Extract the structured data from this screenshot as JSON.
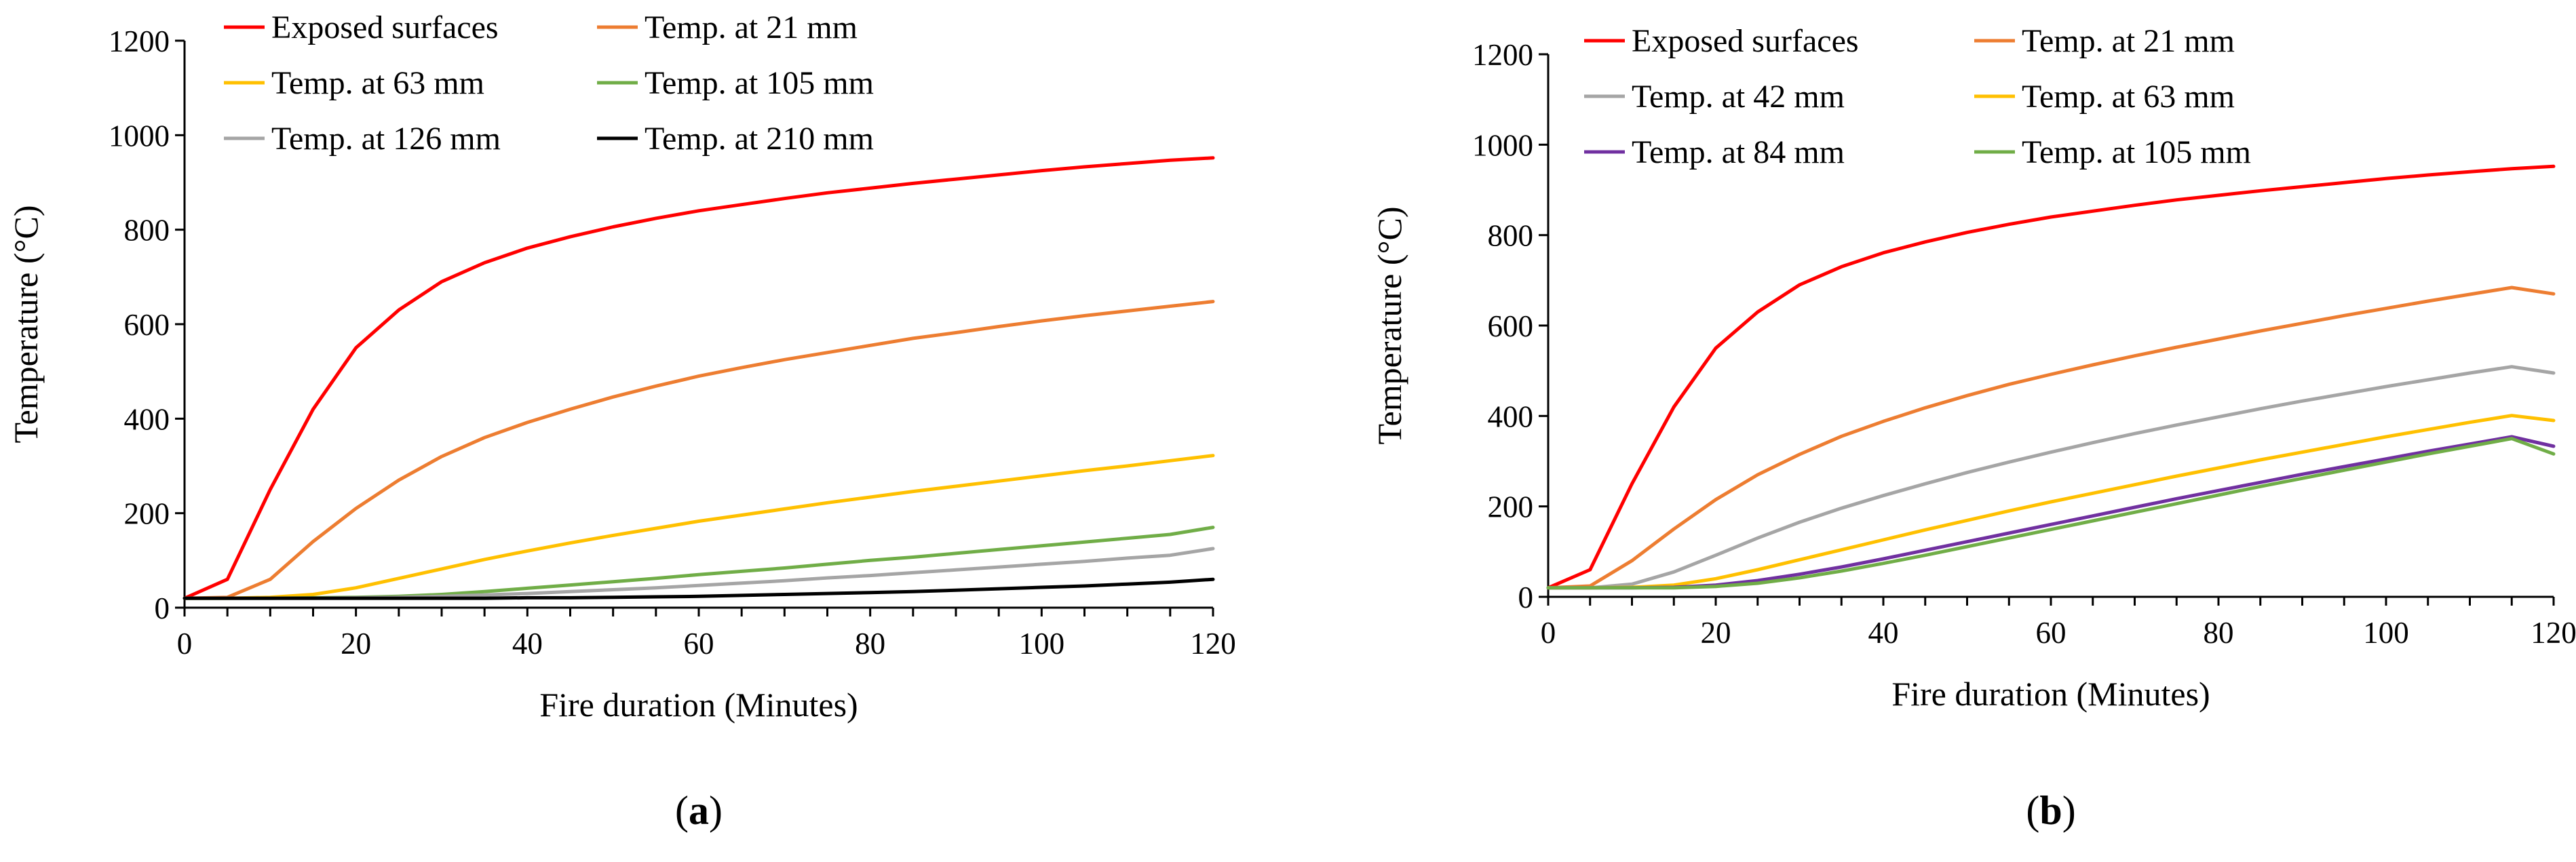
{
  "chart_data": [
    {
      "type": "line",
      "panel_label": "(a)",
      "panel_letter": "a",
      "xlabel": "Fire duration (Minutes)",
      "ylabel": "Temperature (°C)",
      "xlim": [
        0,
        120
      ],
      "ylim": [
        0,
        1200
      ],
      "xticks": [
        0,
        20,
        40,
        60,
        80,
        100,
        120
      ],
      "yticks": [
        0,
        200,
        400,
        600,
        800,
        1000,
        1200
      ],
      "x": [
        0,
        5,
        10,
        15,
        20,
        25,
        30,
        35,
        40,
        45,
        50,
        55,
        60,
        65,
        70,
        75,
        80,
        85,
        90,
        95,
        100,
        105,
        110,
        115,
        120
      ],
      "series": [
        {
          "name": "Exposed surfaces",
          "color": "#ff0000",
          "values": [
            20,
            60,
            250,
            420,
            550,
            630,
            690,
            730,
            761,
            785,
            806,
            824,
            840,
            853,
            866,
            878,
            888,
            898,
            907,
            916,
            925,
            933,
            940,
            947,
            952
          ]
        },
        {
          "name": "Temp. at 21 mm",
          "color": "#ed7d31",
          "values": [
            20,
            22,
            60,
            140,
            210,
            270,
            320,
            360,
            392,
            420,
            446,
            469,
            490,
            508,
            525,
            540,
            555,
            570,
            582,
            595,
            607,
            618,
            628,
            638,
            648
          ]
        },
        {
          "name": "Temp. at 63 mm",
          "color": "#ffc000",
          "values": [
            20,
            20,
            22,
            28,
            42,
            62,
            82,
            102,
            120,
            137,
            153,
            168,
            183,
            196,
            209,
            222,
            234,
            246,
            257,
            268,
            279,
            290,
            300,
            311,
            322
          ]
        },
        {
          "name": "Temp. at 105 mm",
          "color": "#70ad47",
          "values": [
            20,
            20,
            20,
            21,
            22,
            24,
            28,
            34,
            41,
            48,
            55,
            62,
            70,
            77,
            84,
            92,
            100,
            107,
            115,
            123,
            131,
            139,
            147,
            155,
            170
          ]
        },
        {
          "name": "Temp. at 126 mm",
          "color": "#a5a5a5",
          "values": [
            20,
            20,
            20,
            20,
            21,
            22,
            24,
            27,
            30,
            34,
            38,
            42,
            47,
            52,
            57,
            63,
            68,
            74,
            80,
            86,
            92,
            98,
            105,
            111,
            125
          ]
        },
        {
          "name": "Temp. at 210 mm",
          "color": "#000000",
          "values": [
            20,
            20,
            20,
            20,
            20,
            20,
            20,
            20,
            21,
            21,
            22,
            23,
            24,
            26,
            28,
            30,
            32,
            34,
            37,
            40,
            43,
            46,
            50,
            54,
            60
          ]
        }
      ]
    },
    {
      "type": "line",
      "panel_label": "(b)",
      "panel_letter": "b",
      "xlabel": "Fire duration (Minutes)",
      "ylabel": "Temperature (°C)",
      "xlim": [
        0,
        120
      ],
      "ylim": [
        0,
        1200
      ],
      "xticks": [
        0,
        20,
        40,
        60,
        80,
        100,
        120
      ],
      "yticks": [
        0,
        200,
        400,
        600,
        800,
        1000,
        1200
      ],
      "x": [
        0,
        5,
        10,
        15,
        20,
        25,
        30,
        35,
        40,
        45,
        50,
        55,
        60,
        65,
        70,
        75,
        80,
        85,
        90,
        95,
        100,
        105,
        110,
        115,
        120
      ],
      "series": [
        {
          "name": "Exposed surfaces",
          "color": "#ff0000",
          "values": [
            20,
            60,
            250,
            420,
            550,
            630,
            690,
            730,
            761,
            785,
            806,
            824,
            840,
            853,
            866,
            878,
            888,
            898,
            907,
            916,
            925,
            933,
            940,
            947,
            952
          ]
        },
        {
          "name": "Temp. at 21 mm",
          "color": "#ed7d31",
          "values": [
            20,
            24,
            80,
            150,
            215,
            270,
            315,
            355,
            388,
            418,
            445,
            470,
            492,
            513,
            533,
            552,
            570,
            588,
            605,
            622,
            638,
            654,
            669,
            684,
            670
          ]
        },
        {
          "name": "Temp. at 42 mm",
          "color": "#a5a5a5",
          "values": [
            20,
            20,
            28,
            55,
            92,
            130,
            165,
            196,
            224,
            250,
            275,
            298,
            320,
            341,
            361,
            380,
            398,
            416,
            433,
            449,
            465,
            480,
            495,
            509,
            495
          ]
        },
        {
          "name": "Temp. at 63 mm",
          "color": "#ffc000",
          "values": [
            20,
            20,
            21,
            26,
            40,
            60,
            82,
            104,
            126,
            148,
            169,
            190,
            210,
            229,
            248,
            267,
            285,
            303,
            320,
            337,
            354,
            370,
            386,
            401,
            390
          ]
        },
        {
          "name": "Temp. at 84 mm",
          "color": "#7030a0",
          "values": [
            20,
            20,
            20,
            21,
            26,
            36,
            50,
            66,
            84,
            103,
            122,
            141,
            160,
            179,
            198,
            217,
            235,
            253,
            271,
            288,
            305,
            322,
            338,
            354,
            333
          ]
        },
        {
          "name": "Temp. at 105 mm",
          "color": "#70ad47",
          "values": [
            20,
            20,
            20,
            20,
            23,
            30,
            42,
            57,
            74,
            92,
            111,
            130,
            149,
            168,
            187,
            206,
            225,
            244,
            262,
            280,
            298,
            316,
            333,
            350,
            316
          ]
        }
      ]
    }
  ]
}
